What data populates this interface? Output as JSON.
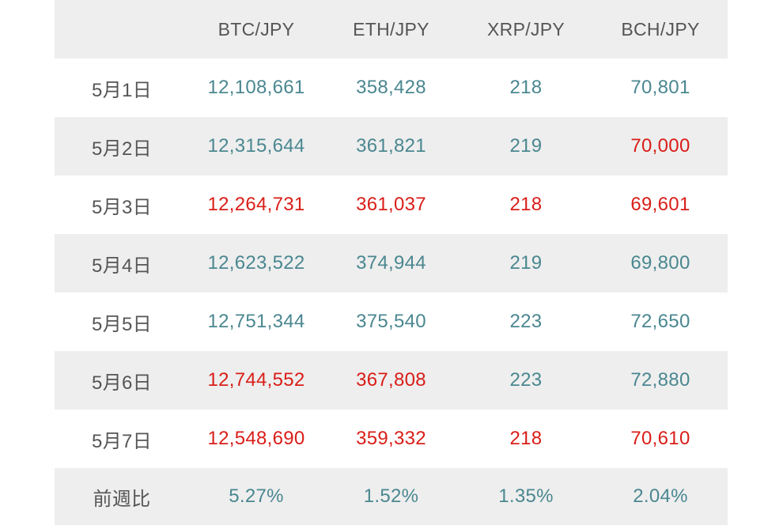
{
  "colors": {
    "up": "#4a8790",
    "down": "#d91e18",
    "label": "#555555",
    "stripe": "#eeeeee"
  },
  "headers": [
    "",
    "BTC/JPY",
    "ETH/JPY",
    "XRP/JPY",
    "BCH/JPY"
  ],
  "rows": [
    {
      "date": "5月1日",
      "btc": "12,108,661",
      "eth": "358,428",
      "xrp": "218",
      "bch": "70,801"
    },
    {
      "date": "5月2日",
      "btc": "12,315,644",
      "eth": "361,821",
      "xrp": "219",
      "bch": "70,000"
    },
    {
      "date": "5月3日",
      "btc": "12,264,731",
      "eth": "361,037",
      "xrp": "218",
      "bch": "69,601"
    },
    {
      "date": "5月4日",
      "btc": "12,623,522",
      "eth": "374,944",
      "xrp": "219",
      "bch": "69,800"
    },
    {
      "date": "5月5日",
      "btc": "12,751,344",
      "eth": "375,540",
      "xrp": "223",
      "bch": "72,650"
    },
    {
      "date": "5月6日",
      "btc": "12,744,552",
      "eth": "367,808",
      "xrp": "223",
      "bch": "72,880"
    },
    {
      "date": "5月7日",
      "btc": "12,548,690",
      "eth": "359,332",
      "xrp": "218",
      "bch": "70,610"
    }
  ],
  "summary": {
    "label": "前週比",
    "btc": "5.27%",
    "eth": "1.52%",
    "xrp": "1.35%",
    "bch": "2.04%"
  }
}
